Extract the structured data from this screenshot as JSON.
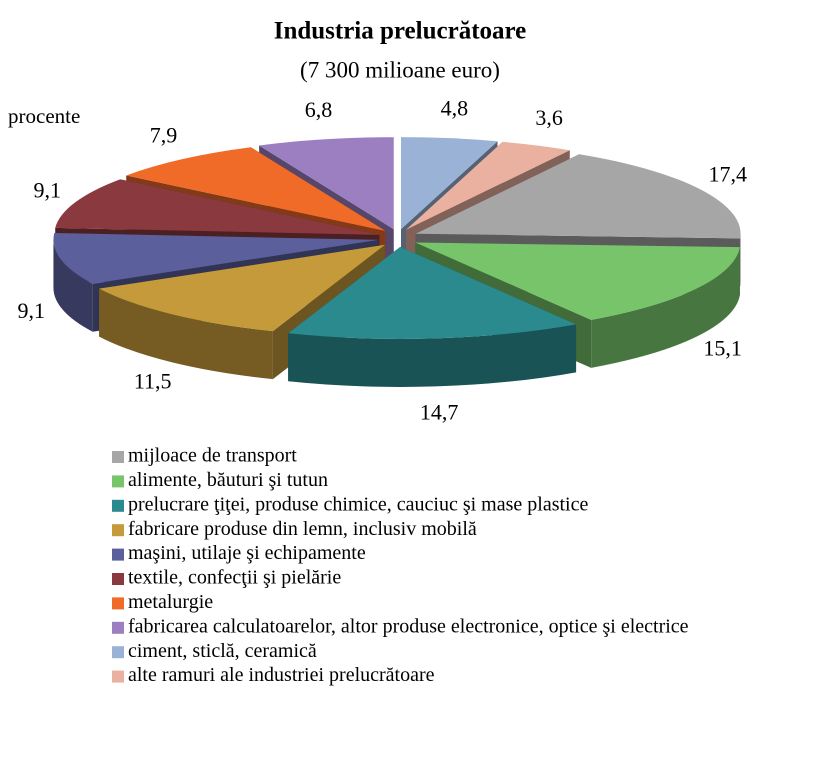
{
  "chart_data": {
    "type": "pie3d",
    "title": "Industria prelucrătoare",
    "subtitle": "(7 300 milioane euro)",
    "unit_label": "procente",
    "categories": [
      "mijloace de transport",
      "alimente, băuturi şi tutun",
      "prelucrare ţiţei, produse chimice, cauciuc şi mase plastice",
      "fabricare produse din lemn, inclusiv mobilă",
      "maşini, utilaje şi echipamente",
      "textile, confecţii şi pielărie",
      "metalurgie",
      "fabricarea calculatoarelor, altor produse electronice, optice şi electrice",
      "ciment, sticlă, ceramică",
      "alte ramuri ale industriei prelucrătoare"
    ],
    "values": [
      17.4,
      15.1,
      14.7,
      11.5,
      9.1,
      9.1,
      7.9,
      6.8,
      4.8,
      3.6
    ],
    "value_labels": [
      "17,4",
      "15,1",
      "14,7",
      "11,5",
      "9,1",
      "9,1",
      "7,9",
      "6,8",
      "4,8",
      "3,6"
    ],
    "colors": [
      "#a6a6a6",
      "#77c46a",
      "#2a8a8e",
      "#c49a3a",
      "#5b5f9c",
      "#8a3a3f",
      "#f06a28",
      "#9b7fc0",
      "#9ab2d6",
      "#eab0a0"
    ],
    "legend": "bottom"
  }
}
